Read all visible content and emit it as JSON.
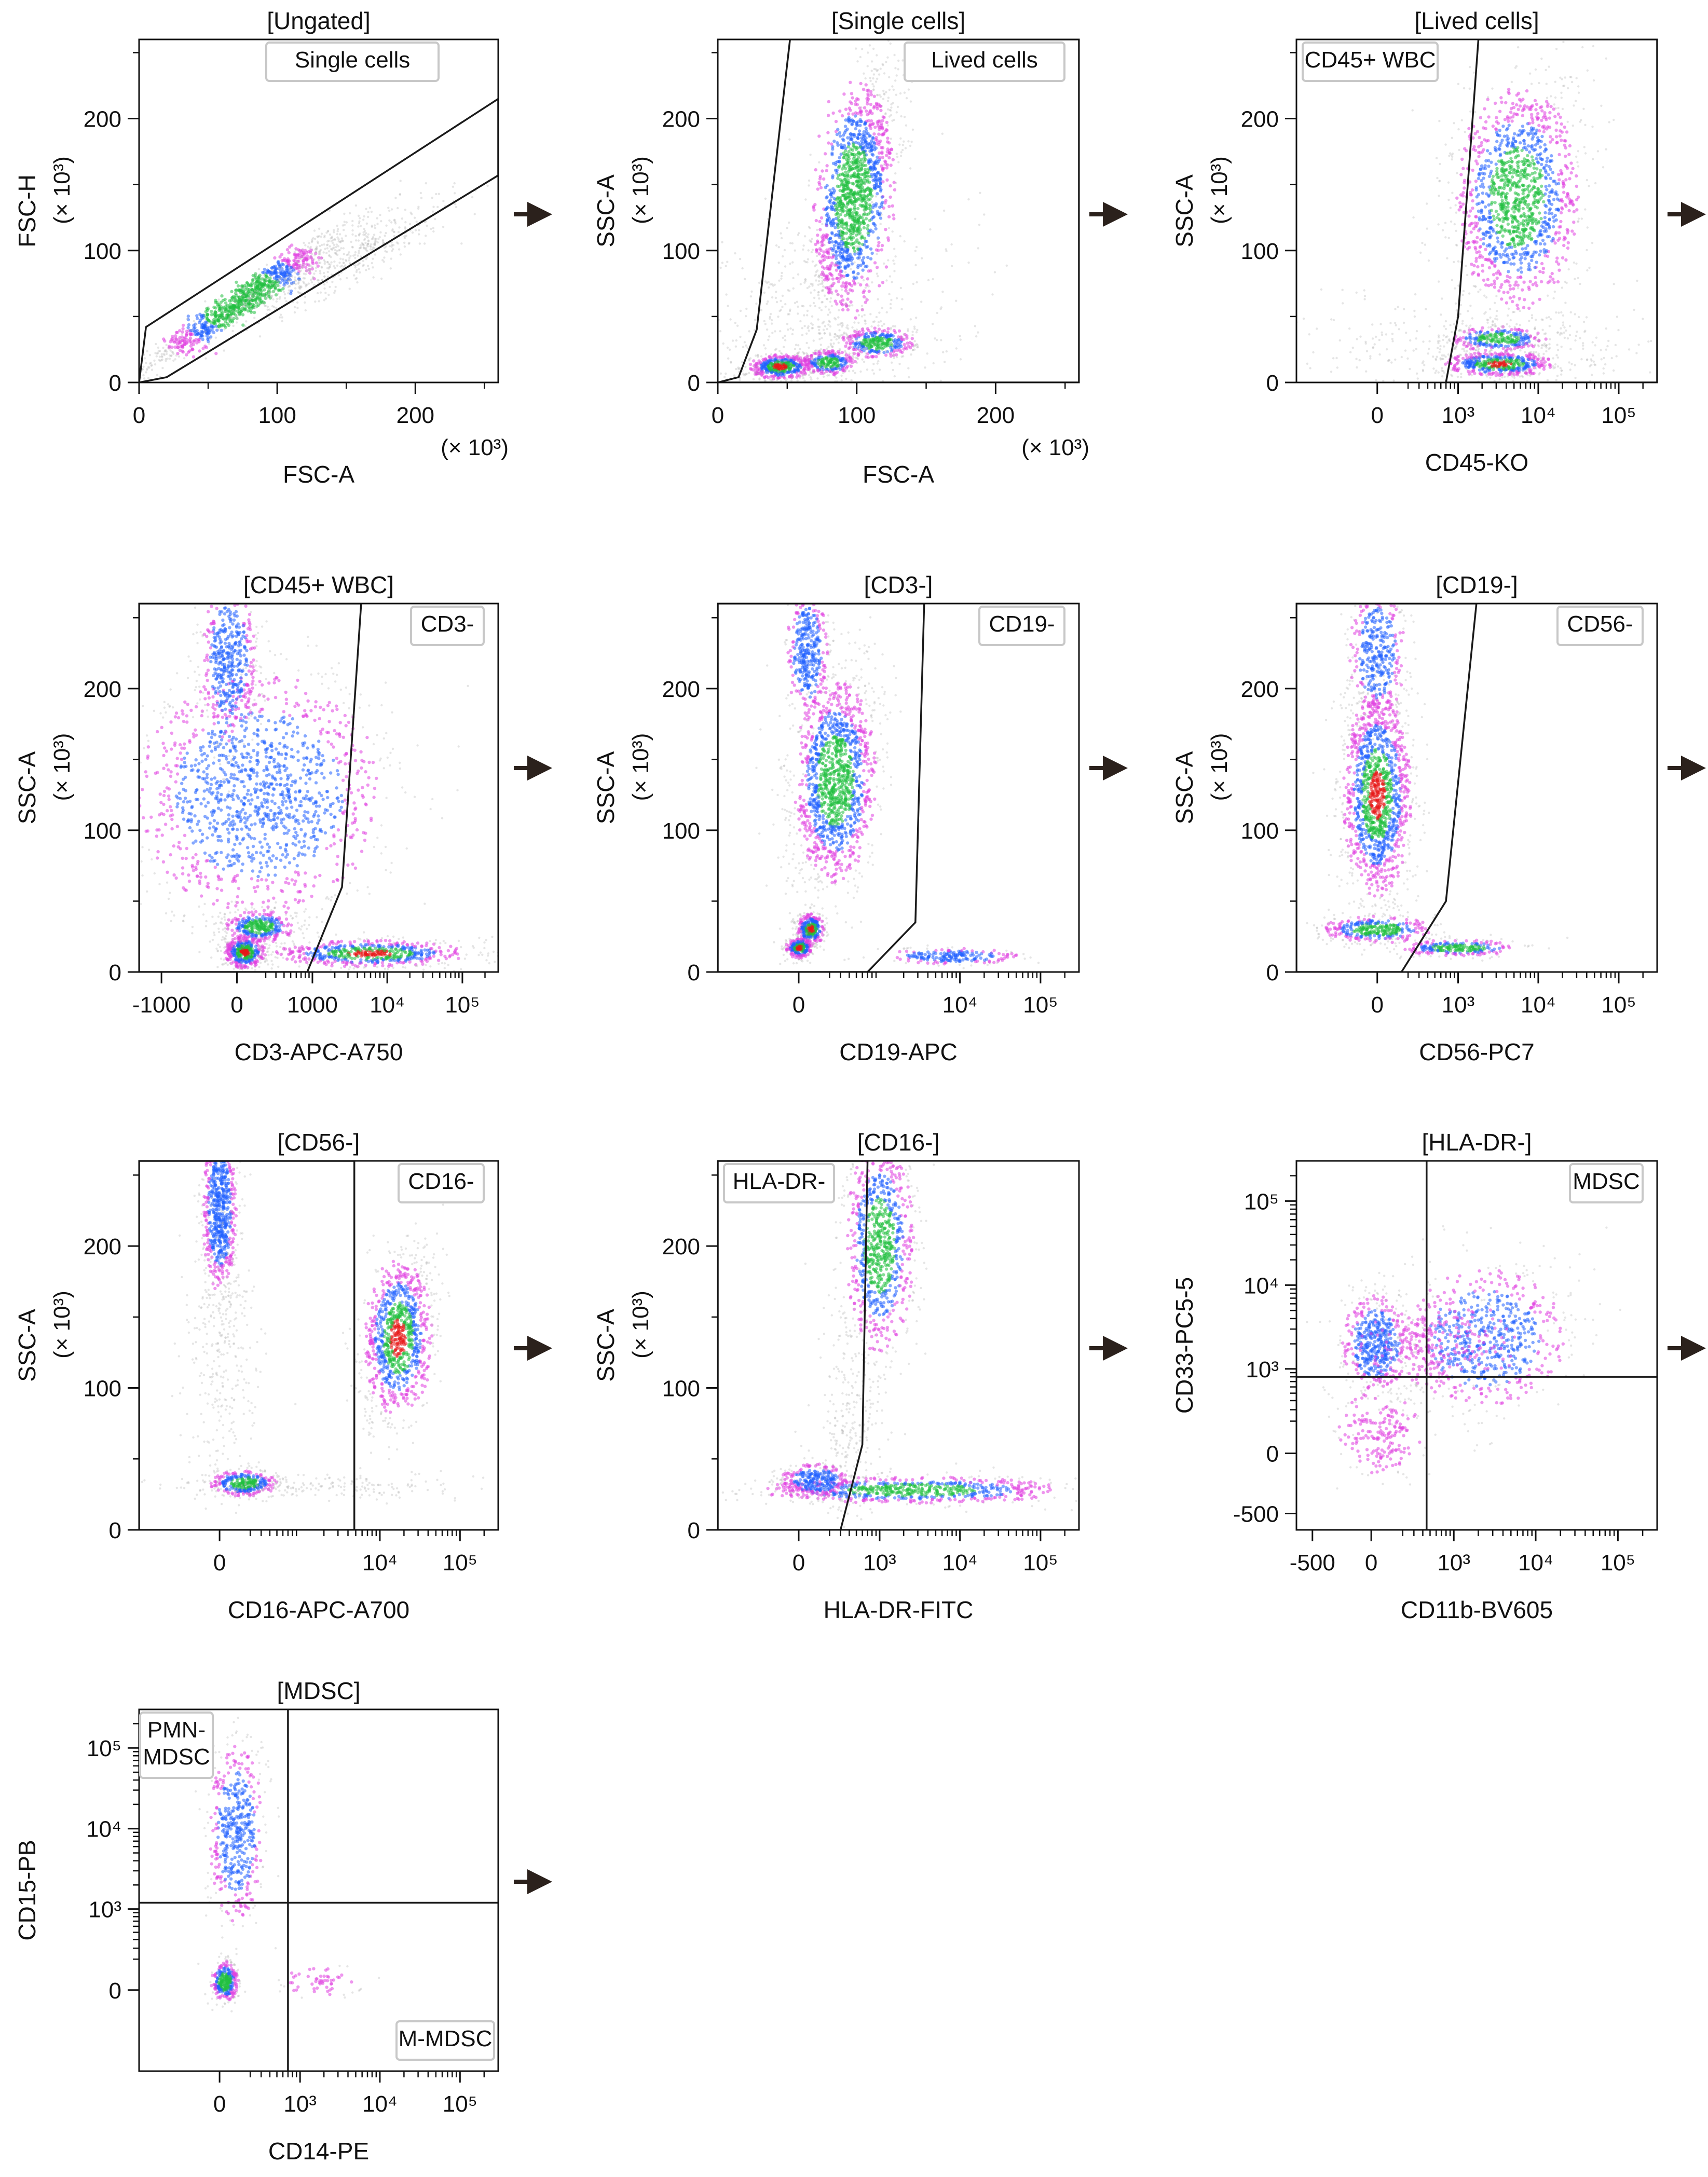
{
  "colors": {
    "axis": "#111111",
    "gate": "#1a1a1a",
    "gate_label_border": "#c8c8c8",
    "arrow": "#2b211c",
    "density_low": "#b4b4b4",
    "density_mid": "#e040e0",
    "density_high": "#2060ff",
    "density_top": "#20c040",
    "density_peak": "#e81818"
  },
  "chart_data": [
    {
      "type": "scatter",
      "title": "[Ungated]",
      "gate_label": "Single cells",
      "xlabel": "FSC-A",
      "ylabel": "FSC-H",
      "y_unit": "(× 10³)",
      "x_multiplier": "(× 10³)",
      "xscale": "linear",
      "xlim": [
        0,
        260
      ],
      "ylim": [
        0,
        260
      ],
      "xticks": [
        [
          0,
          "0"
        ],
        [
          100,
          "100"
        ],
        [
          200,
          "200"
        ]
      ],
      "yticks": [
        [
          0,
          "0"
        ],
        [
          100,
          "100"
        ],
        [
          200,
          "200"
        ]
      ],
      "gate": [
        [
          0,
          0
        ],
        [
          5,
          42
        ],
        [
          260,
          215
        ],
        [
          260,
          157
        ],
        [
          20,
          4
        ]
      ],
      "populations": [
        {
          "x": 75,
          "y": 62,
          "sx": 38,
          "sy": 28,
          "rho": 0.97,
          "n": 1000,
          "peak": 3
        },
        {
          "x": 140,
          "y": 90,
          "sx": 45,
          "sy": 25,
          "rho": 0.9,
          "n": 600,
          "peak": 0
        }
      ],
      "arrow_after": true
    },
    {
      "type": "scatter",
      "title": "[Single cells]",
      "gate_label": "Lived cells",
      "xlabel": "FSC-A",
      "ylabel": "SSC-A",
      "y_unit": "(× 10³)",
      "x_multiplier": "(× 10³)",
      "xscale": "linear",
      "xlim": [
        0,
        260
      ],
      "ylim": [
        0,
        260
      ],
      "xticks": [
        [
          0,
          "0"
        ],
        [
          100,
          "100"
        ],
        [
          200,
          "200"
        ]
      ],
      "yticks": [
        [
          0,
          "0"
        ],
        [
          100,
          "100"
        ],
        [
          200,
          "200"
        ]
      ],
      "gate": [
        [
          0,
          0
        ],
        [
          15,
          4
        ],
        [
          28,
          40
        ],
        [
          52,
          260
        ],
        [
          260,
          260
        ],
        [
          260,
          0
        ]
      ],
      "populations": [
        {
          "x": 98,
          "y": 140,
          "sx": 16,
          "sy": 48,
          "rho": 0.6,
          "n": 1500,
          "peak": 3
        },
        {
          "x": 45,
          "y": 12,
          "sx": 12,
          "sy": 5,
          "rho": 0.2,
          "n": 500,
          "peak": 4
        },
        {
          "x": 115,
          "y": 30,
          "sx": 14,
          "sy": 6,
          "rho": 0.0,
          "n": 350,
          "peak": 3
        },
        {
          "x": 80,
          "y": 15,
          "sx": 10,
          "sy": 5,
          "rho": 0.0,
          "n": 250,
          "peak": 3
        },
        {
          "x": 60,
          "y": 40,
          "sx": 60,
          "sy": 50,
          "rho": 0.3,
          "n": 600,
          "peak": 0
        }
      ],
      "arrow_after": true
    },
    {
      "type": "scatter",
      "title": "[Lived cells]",
      "gate_label": "CD45+ WBC",
      "xlabel": "CD45-KO",
      "ylabel": "SSC-A",
      "y_unit": "(× 10³)",
      "xscale": "biex",
      "xlim": [
        -1000,
        300000
      ],
      "ylim": [
        0,
        260
      ],
      "xticks": [
        [
          0,
          "0"
        ],
        [
          1000,
          "10³"
        ],
        [
          10000,
          "10⁴"
        ],
        [
          100000,
          "10⁵"
        ]
      ],
      "yticks": [
        [
          0,
          "0"
        ],
        [
          100,
          "100"
        ],
        [
          200,
          "200"
        ]
      ],
      "gate": [
        [
          700,
          0
        ],
        [
          1000,
          50
        ],
        [
          1800,
          260
        ],
        [
          300000,
          260
        ],
        [
          300000,
          0
        ]
      ],
      "populations": [
        {
          "x": 5500,
          "y": 140,
          "sx": 0.09,
          "sy": 45,
          "rho": 0.2,
          "n": 1400,
          "peak": 3
        },
        {
          "x": 3300,
          "y": 14,
          "sx": 0.08,
          "sy": 5,
          "rho": 0.0,
          "n": 500,
          "peak": 4
        },
        {
          "x": 3200,
          "y": 33,
          "sx": 0.07,
          "sy": 5,
          "rho": 0.0,
          "n": 300,
          "peak": 3
        },
        {
          "x": 2500,
          "y": 30,
          "sx": 0.3,
          "sy": 18,
          "rho": 0.0,
          "n": 350,
          "peak": 0
        }
      ],
      "arrow_after": true
    },
    {
      "type": "scatter",
      "title": "[CD45+ WBC]",
      "gate_label": "CD3-",
      "xlabel": "CD3-APC-A750",
      "ylabel": "SSC-A",
      "y_unit": "(× 10³)",
      "xscale": "biex",
      "xlim": [
        -2000,
        300000
      ],
      "ylim": [
        0,
        260
      ],
      "xticks": [
        [
          -1000,
          "-1000"
        ],
        [
          0,
          "0"
        ],
        [
          1000,
          "1000"
        ],
        [
          10000,
          "10⁴"
        ],
        [
          100000,
          "10⁵"
        ]
      ],
      "yticks": [
        [
          0,
          "0"
        ],
        [
          100,
          "100"
        ],
        [
          200,
          "200"
        ]
      ],
      "gate": [
        [
          -2000,
          0
        ],
        [
          850,
          0
        ],
        [
          2500,
          60
        ],
        [
          4500,
          260
        ],
        [
          -2000,
          260
        ]
      ],
      "populations": [
        {
          "x": 150,
          "y": 125,
          "sx": 0.18,
          "sy": 45,
          "rho": 0.0,
          "n": 1400,
          "peak": 2
        },
        {
          "x": -50,
          "y": 220,
          "sx": 0.04,
          "sy": 30,
          "rho": 0.0,
          "n": 500,
          "peak": 2
        },
        {
          "x": 50,
          "y": 14,
          "sx": 0.03,
          "sy": 6,
          "rho": 0.0,
          "n": 450,
          "peak": 4
        },
        {
          "x": 150,
          "y": 32,
          "sx": 0.05,
          "sy": 6,
          "rho": 0.0,
          "n": 350,
          "peak": 3
        },
        {
          "x": 6000,
          "y": 13,
          "sx": 0.14,
          "sy": 5,
          "rho": 0.0,
          "n": 600,
          "peak": 4
        }
      ],
      "arrow_after": true
    },
    {
      "type": "scatter",
      "title": "[CD3-]",
      "gate_label": "CD19-",
      "xlabel": "CD19-APC",
      "ylabel": "SSC-A",
      "y_unit": "(× 10³)",
      "xscale": "biex",
      "xlim": [
        -1000,
        300000
      ],
      "ylim": [
        0,
        260
      ],
      "xticks": [
        [
          0,
          "0"
        ],
        [
          10000,
          "10⁴"
        ],
        [
          100000,
          "10⁵"
        ]
      ],
      "yticks": [
        [
          0,
          "0"
        ],
        [
          100,
          "100"
        ],
        [
          200,
          "200"
        ]
      ],
      "gate": [
        [
          -1000,
          0
        ],
        [
          700,
          0
        ],
        [
          2800,
          35
        ],
        [
          3600,
          260
        ],
        [
          -1000,
          260
        ]
      ],
      "populations": [
        {
          "x": 250,
          "y": 135,
          "sx": 0.06,
          "sy": 38,
          "rho": 0.3,
          "n": 1400,
          "peak": 3
        },
        {
          "x": 50,
          "y": 225,
          "sx": 0.03,
          "sy": 25,
          "rho": 0.0,
          "n": 400,
          "peak": 2
        },
        {
          "x": 70,
          "y": 30,
          "sx": 0.02,
          "sy": 6,
          "rho": 0.0,
          "n": 300,
          "peak": 4
        },
        {
          "x": 5,
          "y": 17,
          "sx": 0.02,
          "sy": 4,
          "rho": 0.0,
          "n": 250,
          "peak": 4
        },
        {
          "x": 8000,
          "y": 11,
          "sx": 0.1,
          "sy": 3,
          "rho": 0.0,
          "n": 200,
          "peak": 2
        }
      ],
      "arrow_after": true
    },
    {
      "type": "scatter",
      "title": "[CD19-]",
      "gate_label": "CD56-",
      "xlabel": "CD56-PC7",
      "ylabel": "SSC-A",
      "y_unit": "(× 10³)",
      "xscale": "biex",
      "xlim": [
        -1000,
        300000
      ],
      "ylim": [
        0,
        260
      ],
      "xticks": [
        [
          0,
          "0"
        ],
        [
          1000,
          "10³"
        ],
        [
          10000,
          "10⁴"
        ],
        [
          100000,
          "10⁵"
        ]
      ],
      "yticks": [
        [
          0,
          "0"
        ],
        [
          100,
          "100"
        ],
        [
          200,
          "200"
        ]
      ],
      "gate": [
        [
          -1000,
          0
        ],
        [
          150,
          0
        ],
        [
          700,
          50
        ],
        [
          1700,
          260
        ],
        [
          -1000,
          260
        ]
      ],
      "populations": [
        {
          "x": 0,
          "y": 125,
          "sx": 0.05,
          "sy": 38,
          "rho": 0.0,
          "n": 1400,
          "peak": 4
        },
        {
          "x": 0,
          "y": 225,
          "sx": 0.04,
          "sy": 25,
          "rho": 0.0,
          "n": 400,
          "peak": 2
        },
        {
          "x": 0,
          "y": 30,
          "sx": 0.08,
          "sy": 5,
          "rho": 0.0,
          "n": 350,
          "peak": 3
        },
        {
          "x": 1000,
          "y": 17,
          "sx": 0.09,
          "sy": 3,
          "rho": 0.0,
          "n": 250,
          "peak": 3
        }
      ],
      "arrow_after": true
    },
    {
      "type": "scatter",
      "title": "[CD56-]",
      "gate_label": "CD16-",
      "xlabel": "CD16-APC-A700",
      "ylabel": "SSC-A",
      "y_unit": "(× 10³)",
      "xscale": "biex",
      "xlim": [
        -1000,
        300000
      ],
      "ylim": [
        0,
        260
      ],
      "xticks": [
        [
          0,
          "0"
        ],
        [
          10000,
          "10⁴"
        ],
        [
          100000,
          "10⁵"
        ]
      ],
      "yticks": [
        [
          0,
          "0"
        ],
        [
          100,
          "100"
        ],
        [
          200,
          "200"
        ]
      ],
      "gate": [
        [
          -1000,
          0
        ],
        [
          4800,
          0
        ],
        [
          4800,
          260
        ],
        [
          -1000,
          260
        ]
      ],
      "populations": [
        {
          "x": 0,
          "y": 225,
          "sx": 0.025,
          "sy": 30,
          "rho": 0.0,
          "n": 700,
          "peak": 2
        },
        {
          "x": 0,
          "y": 120,
          "sx": 0.05,
          "sy": 50,
          "rho": 0.0,
          "n": 300,
          "peak": 0
        },
        {
          "x": 150,
          "y": 33,
          "sx": 0.05,
          "sy": 5,
          "rho": 0.0,
          "n": 350,
          "peak": 3
        },
        {
          "x": 1500,
          "y": 30,
          "sx": 0.2,
          "sy": 4,
          "rho": 0.0,
          "n": 200,
          "peak": 0
        },
        {
          "x": 17000,
          "y": 135,
          "sx": 0.05,
          "sy": 30,
          "rho": 0.3,
          "n": 1000,
          "peak": 4
        }
      ],
      "arrow_after": true
    },
    {
      "type": "scatter",
      "title": "[CD16-]",
      "gate_label": "HLA-DR-",
      "xlabel": "HLA-DR-FITC",
      "ylabel": "SSC-A",
      "y_unit": "(× 10³)",
      "xscale": "biex",
      "xlim": [
        -1000,
        300000
      ],
      "ylim": [
        0,
        260
      ],
      "xticks": [
        [
          0,
          "0"
        ],
        [
          1000,
          "10³"
        ],
        [
          10000,
          "10⁴"
        ],
        [
          100000,
          "10⁵"
        ]
      ],
      "yticks": [
        [
          0,
          "0"
        ],
        [
          100,
          "100"
        ],
        [
          200,
          "200"
        ]
      ],
      "gate": [
        [
          -1000,
          0
        ],
        [
          300,
          0
        ],
        [
          600,
          60
        ],
        [
          700,
          260
        ],
        [
          -1000,
          260
        ]
      ],
      "populations": [
        {
          "x": 1000,
          "y": 200,
          "sx": 0.05,
          "sy": 40,
          "rho": 0.0,
          "n": 900,
          "peak": 3
        },
        {
          "x": 2500,
          "y": 28,
          "sx": 0.22,
          "sy": 5,
          "rho": 0.0,
          "n": 700,
          "peak": 3
        },
        {
          "x": 100,
          "y": 35,
          "sx": 0.05,
          "sy": 6,
          "rho": 0.0,
          "n": 300,
          "peak": 2
        },
        {
          "x": 400,
          "y": 80,
          "sx": 0.05,
          "sy": 35,
          "rho": 0.0,
          "n": 250,
          "peak": 0
        }
      ],
      "arrow_after": true
    },
    {
      "type": "scatter",
      "title": "[HLA-DR-]",
      "gate_label": "MDSC",
      "xlabel": "CD11b-BV605",
      "ylabel": "CD33-PC5-5",
      "xscale": "biex",
      "yscale": "biex",
      "xlim": [
        -800,
        300000
      ],
      "ylim": [
        -800,
        300000
      ],
      "xticks": [
        [
          -500,
          "-500"
        ],
        [
          0,
          "0"
        ],
        [
          1000,
          "10³"
        ],
        [
          10000,
          "10⁴"
        ],
        [
          100000,
          "10⁵"
        ]
      ],
      "yticks": [
        [
          -500,
          "-500"
        ],
        [
          0,
          "0"
        ],
        [
          1000,
          "10³"
        ],
        [
          10000,
          "10⁴"
        ],
        [
          100000,
          "10⁵"
        ]
      ],
      "quadrant": [
        450,
        800
      ],
      "populations": [
        {
          "x": 30,
          "y": 2000,
          "sx": 0.05,
          "sy": 0.07,
          "rho": 0.0,
          "n": 500,
          "peak": 2
        },
        {
          "x": 2300,
          "y": 2300,
          "sx": 0.12,
          "sy": 0.1,
          "rho": 0.2,
          "n": 700,
          "peak": 2
        },
        {
          "x": 700,
          "y": 2000,
          "sx": 0.12,
          "sy": 0.06,
          "rho": 0.0,
          "n": 250,
          "peak": 1
        },
        {
          "x": 50,
          "y": 120,
          "sx": 0.06,
          "sy": 0.06,
          "rho": 0.0,
          "n": 200,
          "peak": 1
        }
      ],
      "arrow_after": true
    },
    {
      "type": "scatter",
      "title": "[MDSC]",
      "gate_labels": [
        "PMN-\nMDSC",
        "M-MDSC"
      ],
      "xlabel": "CD14-PE",
      "ylabel": "CD15-PB",
      "xscale": "biex",
      "yscale": "biex",
      "xlim": [
        -1000,
        300000
      ],
      "ylim": [
        -1000,
        300000
      ],
      "xticks": [
        [
          0,
          "0"
        ],
        [
          1000,
          "10³"
        ],
        [
          10000,
          "10⁴"
        ],
        [
          100000,
          "10⁵"
        ]
      ],
      "yticks": [
        [
          0,
          "0"
        ],
        [
          1000,
          "10³"
        ],
        [
          10000,
          "10⁴"
        ],
        [
          100000,
          "10⁵"
        ]
      ],
      "quadrant": [
        700,
        1200
      ],
      "populations": [
        {
          "x": 100,
          "y": 9000,
          "sx": 0.04,
          "sy": 0.13,
          "rho": 0.0,
          "n": 500,
          "peak": 2
        },
        {
          "x": 30,
          "y": 50,
          "sx": 0.02,
          "sy": 0.03,
          "rho": 0.0,
          "n": 300,
          "peak": 3
        },
        {
          "x": 2000,
          "y": 50,
          "sx": 0.06,
          "sy": 0.02,
          "rho": 0.0,
          "n": 60,
          "peak": 1
        }
      ],
      "arrow_after": true
    }
  ]
}
